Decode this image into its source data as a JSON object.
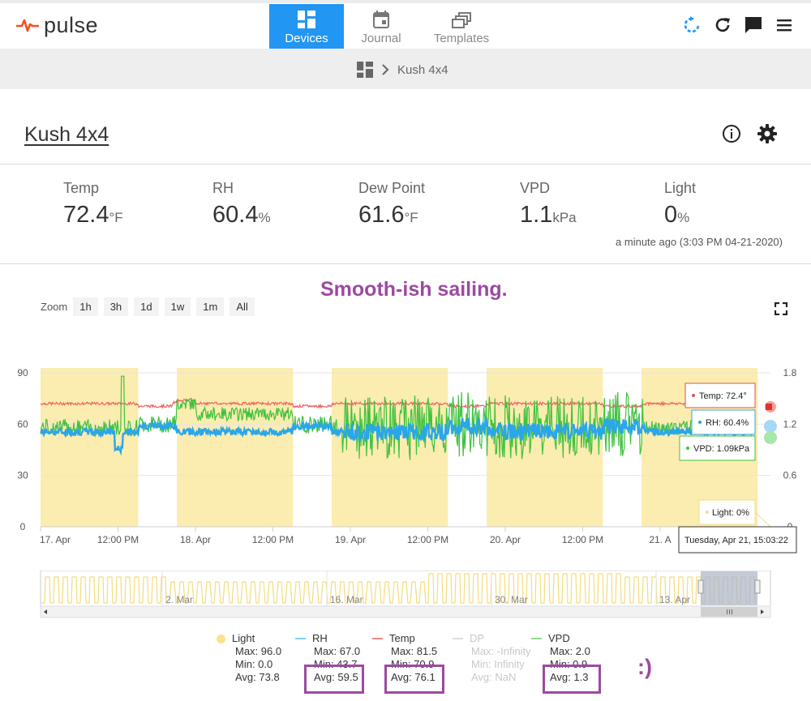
{
  "app": {
    "brand": "pulse"
  },
  "nav": {
    "tabs": [
      {
        "label": "Devices",
        "active": true
      },
      {
        "label": "Journal",
        "active": false
      },
      {
        "label": "Templates",
        "active": false
      }
    ]
  },
  "top_icons": [
    "sync-icon",
    "refresh-icon",
    "chat-icon",
    "menu-icon"
  ],
  "breadcrumb": {
    "current": "Kush 4x4"
  },
  "device": {
    "name": "Kush 4x4"
  },
  "stats": [
    {
      "label": "Temp",
      "value": "72.4",
      "unit": "°F"
    },
    {
      "label": "RH",
      "value": "60.4",
      "unit": "%"
    },
    {
      "label": "Dew Point",
      "value": "61.6",
      "unit": "°F"
    },
    {
      "label": "VPD",
      "value": "1.1",
      "unit": "kPa"
    },
    {
      "label": "Light",
      "value": "0",
      "unit": "%"
    }
  ],
  "updated": "a minute ago (3:03 PM 04-21-2020)",
  "annotation": "Smooth-ish sailing.",
  "annotation2": ":)",
  "zoom": {
    "label": "Zoom",
    "buttons": [
      "1h",
      "3h",
      "1d",
      "1w",
      "1m",
      "All"
    ]
  },
  "colors": {
    "accent": "#2196f3",
    "temp": "#f06060",
    "rh": "#2aa6ea",
    "vpd": "#3ec23e",
    "light": "#fbe9a0",
    "annotation": "#9c4aa0"
  },
  "chart_data": {
    "type": "line",
    "y_left": {
      "ticks": [
        "90",
        "60",
        "30",
        "0"
      ],
      "range": [
        0,
        90
      ]
    },
    "y_right": {
      "ticks": [
        "1.8",
        "1.2",
        "0.6",
        "0"
      ],
      "range": [
        0,
        1.8
      ]
    },
    "x_ticks": [
      "17. Apr",
      "12:00 PM",
      "18. Apr",
      "12:00 PM",
      "19. Apr",
      "12:00 PM",
      "20. Apr",
      "12:00 PM",
      "21. A"
    ],
    "light_on_bands_days": [
      [
        0.0,
        0.63
      ],
      [
        0.88,
        1.63
      ],
      [
        1.88,
        2.63
      ],
      [
        2.88,
        3.63
      ],
      [
        3.88,
        4.63
      ]
    ],
    "series": [
      {
        "name": "Temp",
        "approx_level": 72
      },
      {
        "name": "RH",
        "approx_level": 57
      },
      {
        "name": "VPD",
        "approx_level_kpa": 1.15
      },
      {
        "name": "Light"
      }
    ],
    "tooltips": {
      "temp": "Temp: 72.4°",
      "rh": "RH: 60.4%",
      "vpd": "VPD: 1.09kPa",
      "light": "Light: 0%",
      "time": "Tuesday, Apr 21, 15:03:22"
    },
    "navigator_ticks": [
      "2. Mar",
      "16. Mar",
      "30. Mar",
      "13. Apr"
    ]
  },
  "legend": [
    {
      "name": "Light",
      "max": "Max: 96.0",
      "min": "Min: 0.0",
      "avg": "Avg: 73.8",
      "color": "#fbe38a",
      "enabled": true
    },
    {
      "name": "RH",
      "max": "Max: 67.0",
      "min": "Min: 43.7",
      "avg": "Avg: 59.5",
      "color": "#7fd0ee",
      "enabled": true
    },
    {
      "name": "Temp",
      "max": "Max: 81.5",
      "min": "Min: 70.9",
      "avg": "Avg: 76.1",
      "color": "#f08a8a",
      "enabled": true
    },
    {
      "name": "DP",
      "max": "Max: -Infinity",
      "min": "Min: Infinity",
      "avg": "Avg: NaN",
      "color": "#dddddd",
      "enabled": false
    },
    {
      "name": "VPD",
      "max": "Max: 2.0",
      "min": "Min: 0.9",
      "avg": "Avg: 1.3",
      "color": "#8fdc8f",
      "enabled": true
    }
  ]
}
